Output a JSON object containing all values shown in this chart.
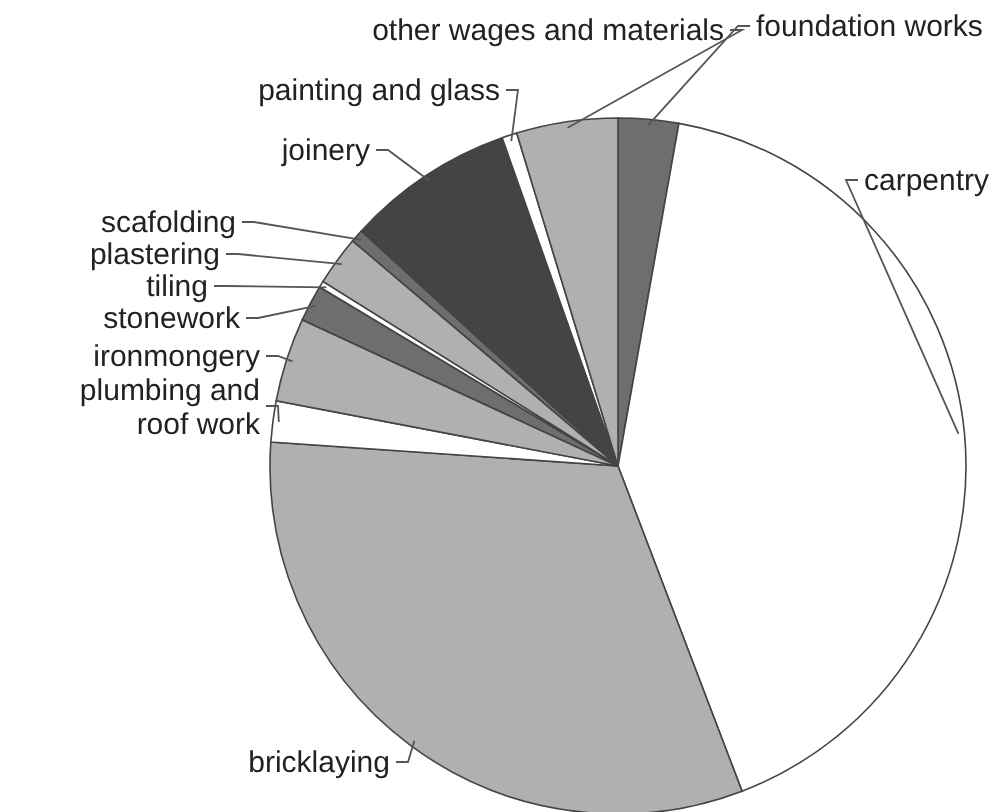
{
  "chart_data": {
    "type": "pie",
    "categories": [
      "foundation works",
      "carpentry",
      "bricklaying",
      "plumbing and roof work",
      "ironmongery",
      "stonework",
      "tiling",
      "plastering",
      "scafolding",
      "joinery",
      "painting and glass",
      "other wages and materials"
    ],
    "values": [
      2.8,
      41.4,
      31.9,
      1.9,
      3.9,
      1.7,
      0.3,
      2.3,
      0.6,
      7.8,
      0.7,
      4.7
    ],
    "colors": [
      "#6e6e6e",
      "#ffffff",
      "#b0b0b0",
      "#ffffff",
      "#b0b0b0",
      "#6e6e6e",
      "#ffffff",
      "#b0b0b0",
      "#6e6e6e",
      "#444444",
      "#ffffff",
      "#b0b0b0"
    ]
  }
}
